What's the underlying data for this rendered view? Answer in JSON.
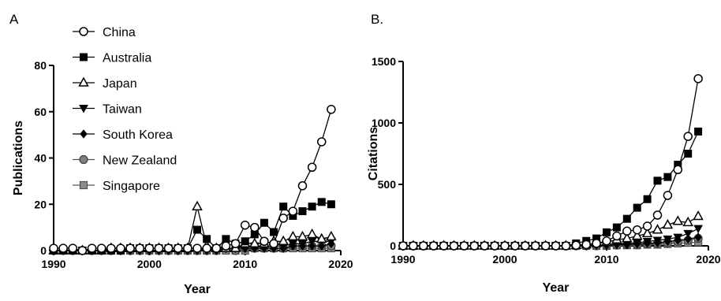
{
  "chart_data": [
    {
      "panel_label": "A",
      "type": "line",
      "xlabel": "Year",
      "ylabel": "Publications",
      "xlim": [
        1990,
        2020
      ],
      "ylim": [
        0,
        80
      ],
      "xticks": [
        1990,
        2000,
        2010,
        2020
      ],
      "yticks": [
        0,
        20,
        40,
        60,
        80
      ],
      "legend_position": "top-left",
      "series": [
        {
          "name": "China",
          "marker": "open-circle",
          "color": "#000000",
          "x": [
            1990,
            1991,
            1992,
            1993,
            1994,
            1995,
            1996,
            1997,
            1998,
            1999,
            2000,
            2001,
            2002,
            2003,
            2004,
            2005,
            2006,
            2007,
            2008,
            2009,
            2010,
            2011,
            2012,
            2013,
            2014,
            2015,
            2016,
            2017,
            2018,
            2019
          ],
          "y": [
            1,
            1,
            1,
            0,
            1,
            1,
            1,
            1,
            1,
            1,
            1,
            1,
            1,
            1,
            1,
            1,
            1,
            1,
            2,
            3,
            11,
            10,
            4,
            3,
            14,
            17,
            28,
            36,
            47,
            61
          ]
        },
        {
          "name": "Australia",
          "marker": "filled-square",
          "color": "#000000",
          "x": [
            1990,
            1991,
            1992,
            1993,
            1994,
            1995,
            1996,
            1997,
            1998,
            1999,
            2000,
            2001,
            2002,
            2003,
            2004,
            2005,
            2006,
            2007,
            2008,
            2009,
            2010,
            2011,
            2012,
            2013,
            2014,
            2015,
            2016,
            2017,
            2018,
            2019
          ],
          "y": [
            0,
            0,
            0,
            0,
            0,
            0,
            0,
            0,
            1,
            1,
            1,
            1,
            1,
            1,
            1,
            9,
            5,
            1,
            5,
            3,
            4,
            7,
            12,
            8,
            19,
            15,
            17,
            19,
            21,
            20
          ]
        },
        {
          "name": "Japan",
          "marker": "open-triangle-up",
          "color": "#000000",
          "x": [
            1990,
            1991,
            1992,
            1993,
            1994,
            1995,
            1996,
            1997,
            1998,
            1999,
            2000,
            2001,
            2002,
            2003,
            2004,
            2005,
            2006,
            2007,
            2008,
            2009,
            2010,
            2011,
            2012,
            2013,
            2014,
            2015,
            2016,
            2017,
            2018,
            2019
          ],
          "y": [
            0,
            0,
            0,
            0,
            0,
            0,
            1,
            1,
            1,
            1,
            1,
            1,
            1,
            1,
            1,
            19,
            2,
            1,
            1,
            1,
            3,
            3,
            3,
            4,
            4,
            6,
            6,
            7,
            5,
            6
          ]
        },
        {
          "name": "Taiwan",
          "marker": "filled-triangle-down",
          "color": "#000000",
          "x": [
            1990,
            1991,
            1992,
            1993,
            1994,
            1995,
            1996,
            1997,
            1998,
            1999,
            2000,
            2001,
            2002,
            2003,
            2004,
            2005,
            2006,
            2007,
            2008,
            2009,
            2010,
            2011,
            2012,
            2013,
            2014,
            2015,
            2016,
            2017,
            2018,
            2019
          ],
          "y": [
            0,
            0,
            0,
            0,
            0,
            0,
            0,
            0,
            0,
            0,
            0,
            0,
            0,
            0,
            0,
            0,
            0,
            1,
            1,
            1,
            2,
            2,
            2,
            2,
            2,
            3,
            3,
            4,
            4,
            4
          ]
        },
        {
          "name": "South Korea",
          "marker": "filled-diamond",
          "color": "#000000",
          "x": [
            1990,
            1991,
            1992,
            1993,
            1994,
            1995,
            1996,
            1997,
            1998,
            1999,
            2000,
            2001,
            2002,
            2003,
            2004,
            2005,
            2006,
            2007,
            2008,
            2009,
            2010,
            2011,
            2012,
            2013,
            2014,
            2015,
            2016,
            2017,
            2018,
            2019
          ],
          "y": [
            0,
            0,
            0,
            0,
            0,
            0,
            0,
            0,
            0,
            0,
            0,
            0,
            0,
            0,
            0,
            0,
            0,
            0,
            1,
            1,
            1,
            1,
            1,
            1,
            1,
            2,
            2,
            2,
            2,
            3
          ]
        },
        {
          "name": "New Zealand",
          "marker": "gray-circle",
          "color": "#808080",
          "x": [
            1990,
            1991,
            1992,
            1993,
            1994,
            1995,
            1996,
            1997,
            1998,
            1999,
            2000,
            2001,
            2002,
            2003,
            2004,
            2005,
            2006,
            2007,
            2008,
            2009,
            2010,
            2011,
            2012,
            2013,
            2014,
            2015,
            2016,
            2017,
            2018,
            2019
          ],
          "y": [
            0,
            0,
            0,
            0,
            0,
            0,
            0,
            0,
            0,
            0,
            0,
            0,
            0,
            0,
            0,
            0,
            0,
            0,
            1,
            0,
            1,
            1,
            1,
            1,
            1,
            2,
            2,
            2,
            2,
            2
          ]
        },
        {
          "name": "Singapore",
          "marker": "gray-square",
          "color": "#8c8c8c",
          "x": [
            1990,
            1991,
            1992,
            1993,
            1994,
            1995,
            1996,
            1997,
            1998,
            1999,
            2000,
            2001,
            2002,
            2003,
            2004,
            2005,
            2006,
            2007,
            2008,
            2009,
            2010,
            2011,
            2012,
            2013,
            2014,
            2015,
            2016,
            2017,
            2018,
            2019
          ],
          "y": [
            0,
            0,
            0,
            0,
            0,
            0,
            0,
            0,
            0,
            0,
            0,
            0,
            0,
            0,
            0,
            0,
            0,
            0,
            0,
            0,
            0,
            1,
            1,
            1,
            1,
            1,
            1,
            1,
            1,
            1
          ]
        }
      ]
    },
    {
      "panel_label": "B.",
      "type": "line",
      "xlabel": "Year",
      "ylabel": "Citations",
      "xlim": [
        1990,
        2020
      ],
      "ylim": [
        0,
        1500
      ],
      "xticks": [
        1990,
        2000,
        2010,
        2020
      ],
      "yticks": [
        0,
        500,
        1000,
        1500
      ],
      "series": [
        {
          "name": "China",
          "marker": "open-circle",
          "color": "#000000",
          "x": [
            1990,
            1991,
            1992,
            1993,
            1994,
            1995,
            1996,
            1997,
            1998,
            1999,
            2000,
            2001,
            2002,
            2003,
            2004,
            2005,
            2006,
            2007,
            2008,
            2009,
            2010,
            2011,
            2012,
            2013,
            2014,
            2015,
            2016,
            2017,
            2018,
            2019
          ],
          "y": [
            0,
            0,
            0,
            0,
            0,
            0,
            0,
            0,
            0,
            0,
            0,
            0,
            0,
            0,
            0,
            0,
            0,
            5,
            10,
            20,
            40,
            80,
            120,
            130,
            160,
            250,
            410,
            620,
            890,
            1360
          ]
        },
        {
          "name": "Australia",
          "marker": "filled-square",
          "color": "#000000",
          "x": [
            1990,
            1991,
            1992,
            1993,
            1994,
            1995,
            1996,
            1997,
            1998,
            1999,
            2000,
            2001,
            2002,
            2003,
            2004,
            2005,
            2006,
            2007,
            2008,
            2009,
            2010,
            2011,
            2012,
            2013,
            2014,
            2015,
            2016,
            2017,
            2018,
            2019
          ],
          "y": [
            0,
            0,
            0,
            0,
            0,
            0,
            0,
            0,
            0,
            0,
            0,
            0,
            0,
            0,
            0,
            0,
            0,
            20,
            40,
            60,
            110,
            150,
            220,
            310,
            380,
            530,
            560,
            660,
            750,
            930
          ]
        },
        {
          "name": "Japan",
          "marker": "open-triangle-up",
          "color": "#000000",
          "x": [
            1990,
            1991,
            1992,
            1993,
            1994,
            1995,
            1996,
            1997,
            1998,
            1999,
            2000,
            2001,
            2002,
            2003,
            2004,
            2005,
            2006,
            2007,
            2008,
            2009,
            2010,
            2011,
            2012,
            2013,
            2014,
            2015,
            2016,
            2017,
            2018,
            2019
          ],
          "y": [
            0,
            0,
            0,
            0,
            0,
            0,
            0,
            0,
            0,
            0,
            0,
            0,
            0,
            0,
            0,
            0,
            0,
            5,
            10,
            20,
            30,
            50,
            60,
            80,
            100,
            130,
            170,
            200,
            190,
            240
          ]
        },
        {
          "name": "Taiwan",
          "marker": "filled-triangle-down",
          "color": "#000000",
          "x": [
            1990,
            1991,
            1992,
            1993,
            1994,
            1995,
            1996,
            1997,
            1998,
            1999,
            2000,
            2001,
            2002,
            2003,
            2004,
            2005,
            2006,
            2007,
            2008,
            2009,
            2010,
            2011,
            2012,
            2013,
            2014,
            2015,
            2016,
            2017,
            2018,
            2019
          ],
          "y": [
            0,
            0,
            0,
            0,
            0,
            0,
            0,
            0,
            0,
            0,
            0,
            0,
            0,
            0,
            0,
            0,
            0,
            0,
            5,
            5,
            10,
            15,
            20,
            25,
            35,
            45,
            55,
            70,
            100,
            140
          ]
        },
        {
          "name": "South Korea",
          "marker": "filled-diamond",
          "color": "#000000",
          "x": [
            1990,
            1991,
            1992,
            1993,
            1994,
            1995,
            1996,
            1997,
            1998,
            1999,
            2000,
            2001,
            2002,
            2003,
            2004,
            2005,
            2006,
            2007,
            2008,
            2009,
            2010,
            2011,
            2012,
            2013,
            2014,
            2015,
            2016,
            2017,
            2018,
            2019
          ],
          "y": [
            0,
            0,
            0,
            0,
            0,
            0,
            0,
            0,
            0,
            0,
            0,
            0,
            0,
            0,
            0,
            0,
            0,
            0,
            0,
            5,
            5,
            10,
            10,
            15,
            20,
            25,
            35,
            45,
            55,
            70
          ]
        },
        {
          "name": "New Zealand",
          "marker": "gray-circle",
          "color": "#808080",
          "x": [
            1990,
            1991,
            1992,
            1993,
            1994,
            1995,
            1996,
            1997,
            1998,
            1999,
            2000,
            2001,
            2002,
            2003,
            2004,
            2005,
            2006,
            2007,
            2008,
            2009,
            2010,
            2011,
            2012,
            2013,
            2014,
            2015,
            2016,
            2017,
            2018,
            2019
          ],
          "y": [
            0,
            0,
            0,
            0,
            0,
            0,
            0,
            0,
            0,
            0,
            0,
            0,
            0,
            0,
            0,
            0,
            0,
            0,
            0,
            0,
            5,
            5,
            10,
            10,
            15,
            20,
            25,
            35,
            45,
            60
          ]
        },
        {
          "name": "Singapore",
          "marker": "gray-square",
          "color": "#8c8c8c",
          "x": [
            1990,
            1991,
            1992,
            1993,
            1994,
            1995,
            1996,
            1997,
            1998,
            1999,
            2000,
            2001,
            2002,
            2003,
            2004,
            2005,
            2006,
            2007,
            2008,
            2009,
            2010,
            2011,
            2012,
            2013,
            2014,
            2015,
            2016,
            2017,
            2018,
            2019
          ],
          "y": [
            0,
            0,
            0,
            0,
            0,
            0,
            0,
            0,
            0,
            0,
            0,
            0,
            0,
            0,
            0,
            0,
            0,
            0,
            0,
            0,
            0,
            5,
            5,
            5,
            10,
            10,
            15,
            20,
            25,
            30
          ]
        }
      ]
    }
  ]
}
